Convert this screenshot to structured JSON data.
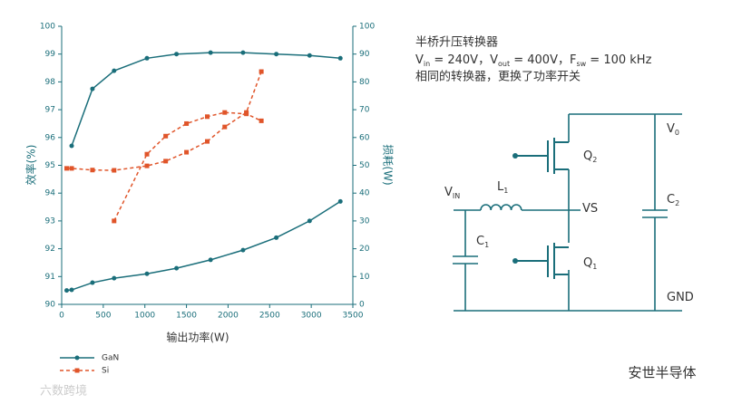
{
  "chart_data": {
    "type": "line",
    "xlabel": "输出功率(W)",
    "ylabel": "效率(%)",
    "y2label": "损耗(W)",
    "xlim": [
      0,
      3500
    ],
    "xticks": [
      0,
      500,
      1000,
      1500,
      2000,
      2500,
      3000,
      3500
    ],
    "ylim": [
      90,
      100
    ],
    "yticks": [
      90,
      91,
      92,
      93,
      94,
      95,
      96,
      97,
      98,
      99,
      100
    ],
    "y2lim": [
      0,
      100
    ],
    "y2ticks": [
      0,
      10,
      20,
      30,
      40,
      50,
      60,
      70,
      80,
      90,
      100
    ],
    "grid": false,
    "legend": "bottom-left",
    "series": [
      {
        "name": "GaN",
        "color": "#1a6e7a",
        "marker": "circle",
        "dashed": false,
        "axis": "y",
        "x": [
          120,
          370,
          630,
          1025,
          1380,
          1790,
          2180,
          2580,
          2980,
          3350
        ],
        "values": [
          95.7,
          97.75,
          98.4,
          98.85,
          99.0,
          99.05,
          99.05,
          99.0,
          98.95,
          98.85
        ]
      },
      {
        "color": "#1a6e7a",
        "marker": "circle",
        "dashed": false,
        "axis": "y2",
        "x": [
          60,
          120,
          370,
          630,
          1025,
          1380,
          1790,
          2180,
          2580,
          2980,
          3350
        ],
        "values": [
          5,
          5.2,
          7.8,
          9.4,
          11,
          13,
          16,
          19.5,
          24,
          30,
          37
        ]
      },
      {
        "name": "Si",
        "color": "#e0552a",
        "marker": "square",
        "dashed": true,
        "axis": "y",
        "x": [
          630,
          1025,
          1250,
          1500,
          1750,
          1960,
          2220,
          2400
        ],
        "values": [
          93.0,
          95.4,
          96.05,
          96.5,
          96.75,
          96.9,
          96.85,
          96.6
        ]
      },
      {
        "color": "#e0552a",
        "marker": "square",
        "dashed": true,
        "axis": "y2",
        "x": [
          60,
          120,
          370,
          630,
          1025,
          1250,
          1500,
          1750,
          1960,
          2220,
          2400
        ],
        "values": [
          48.9,
          48.9,
          48.3,
          48.2,
          49.8,
          51.5,
          54.7,
          58.6,
          63.8,
          69,
          83.7
        ]
      }
    ]
  },
  "circuit": {
    "title": "半桥升压转换器",
    "spec": [
      {
        "main": "V",
        "sub": "in",
        "rest": " = 240V，"
      },
      {
        "main": "V",
        "sub": "out",
        "rest": " = 400V，"
      },
      {
        "main": "F",
        "sub": "sw",
        "rest": " = 100 kHz"
      }
    ],
    "note": "相同的转换器，更换了功率开关",
    "labels": [
      {
        "main": "V",
        "sub": "0"
      },
      {
        "main": "C",
        "sub": "2"
      },
      {
        "main": "VS"
      },
      {
        "main": "L",
        "sub": "1"
      },
      {
        "main": "V",
        "sub": "IN"
      },
      {
        "main": "C",
        "sub": "1"
      },
      {
        "main": "Q",
        "sub": "2"
      },
      {
        "main": "Q",
        "sub": "1"
      },
      {
        "main": "GND"
      }
    ]
  },
  "watermarks": [
    "安世半导体",
    "六数跨境"
  ]
}
